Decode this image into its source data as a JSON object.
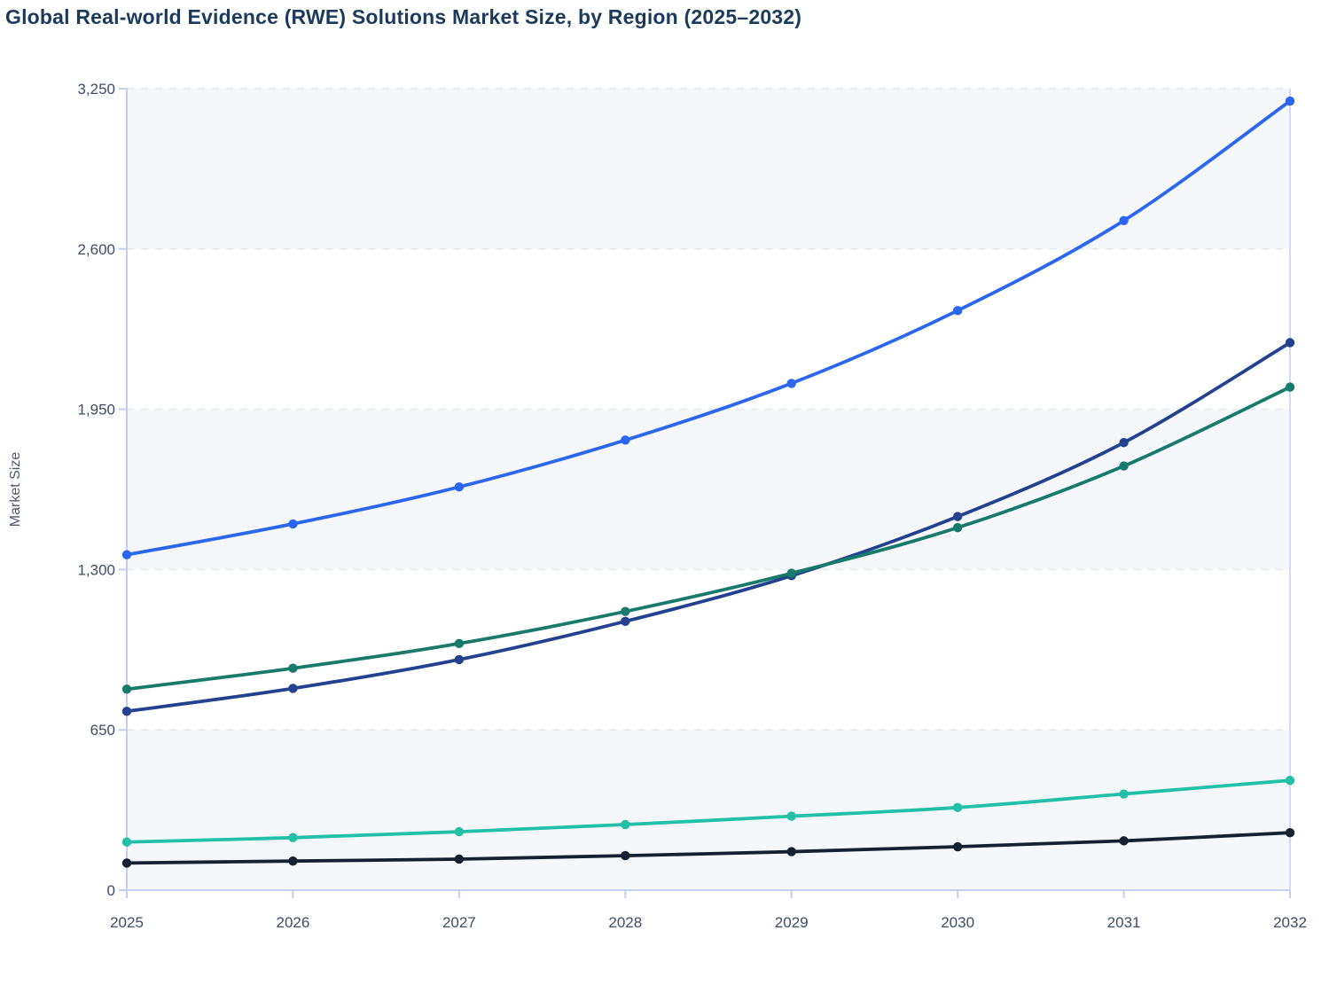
{
  "page": {
    "title": "Global Real-world Evidence (RWE) Solutions Market Size, by Region (2025–2032)"
  },
  "chart_data": {
    "type": "line",
    "title": "Global Real-world Evidence (RWE) Solutions Market Size, by Region (2025–2032)",
    "xlabel": "",
    "ylabel": "Market Size",
    "x": [
      2025,
      2026,
      2027,
      2028,
      2029,
      2030,
      2031,
      2032
    ],
    "x_tick_labels": [
      "2025",
      "2026",
      "2027",
      "2028",
      "2029",
      "2030",
      "2031",
      "2032"
    ],
    "y_ticks": [
      0,
      650,
      1300,
      1950,
      2600,
      3250
    ],
    "y_tick_labels": [
      "0",
      "650",
      "1,300",
      "1,950",
      "2,600",
      "3,250"
    ],
    "ylim": [
      0,
      3250
    ],
    "grid": "horizontal dashed gridlines at each y tick",
    "plot_bands": "alternating light shaded horizontal bands (0-650, 1300-1950, 2600-3250)",
    "legend": "none",
    "marker": "filled circle on every data point",
    "series": [
      {
        "name": "series-blue",
        "color": "#2b67ee",
        "values": [
          1360,
          1485,
          1635,
          1825,
          2055,
          2350,
          2715,
          3200
        ]
      },
      {
        "name": "series-navy",
        "color": "#24418f",
        "values": [
          725,
          818,
          935,
          1090,
          1275,
          1515,
          1815,
          2220
        ]
      },
      {
        "name": "series-green",
        "color": "#177a6b",
        "values": [
          815,
          900,
          1000,
          1130,
          1285,
          1470,
          1720,
          2040
        ]
      },
      {
        "name": "series-teal",
        "color": "#21c0a7",
        "values": [
          195,
          213,
          237,
          266,
          300,
          335,
          390,
          445
        ]
      },
      {
        "name": "series-black",
        "color": "#152031",
        "values": [
          110,
          118,
          126,
          140,
          156,
          176,
          200,
          233
        ]
      }
    ],
    "colors": {
      "band_fill": "#f5f7fa",
      "gridline": "#e3e7ee",
      "axis_spine": "#c4cef2",
      "title_text": "#1c3a5c",
      "tick_text": "#3f4e66",
      "axis_label_text": "#4c5a72",
      "background": "#ffffff"
    }
  }
}
